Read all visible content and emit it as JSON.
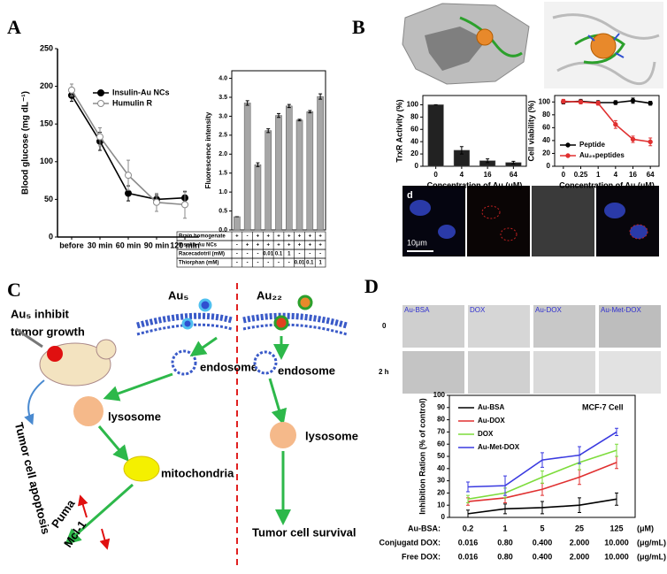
{
  "panel_labels": [
    "A",
    "B",
    "C",
    "D"
  ],
  "panel_b_images": {
    "microscopy_label": "d",
    "scale_bar": "10μm"
  },
  "panel_c_diagram": {
    "caption": [
      "Au₅ inhibit",
      "tumor growth"
    ],
    "au5": "Au₅",
    "au22": "Au₂₂",
    "endosome_left": "endosome",
    "lysosome_left": "lysosome",
    "mitochondria": "mitochondria",
    "puma": "Puma",
    "mcl1": "Mcl-1",
    "apoptosis": "Tumor cell apoptosis",
    "endosome_right": "endosome",
    "lysosome_right": "lysosome",
    "survival": "Tumor cell survival"
  },
  "panel_d_images": {
    "columns": [
      "Au-BSA",
      "DOX",
      "Au-DOX",
      "Au-Met-DOX"
    ],
    "rows": [
      "0",
      "2 h"
    ]
  },
  "chart_data": [
    {
      "type": "line",
      "ylabel": "Blood glucose (mg dL⁻¹)",
      "categories": [
        "before",
        "30 min",
        "60 min",
        "90 min",
        "120 min"
      ],
      "series": [
        {
          "name": "Insulin-Au NCs",
          "color": "#000000",
          "marker_fill": "#000000",
          "values": [
            188,
            127,
            58,
            50,
            52
          ],
          "errors": [
            8,
            12,
            10,
            6,
            8
          ]
        },
        {
          "name": "Humulin R",
          "color": "#8a8a8a",
          "marker_fill": "#ffffff",
          "values": [
            195,
            133,
            82,
            46,
            43
          ],
          "errors": [
            8,
            12,
            20,
            12,
            18
          ]
        }
      ],
      "ylim": [
        0,
        250
      ],
      "yticks": [
        0,
        50,
        100,
        150,
        200,
        250
      ],
      "frame": false,
      "legend": "upper center"
    },
    {
      "type": "bar",
      "ylabel": "Fluorescence intensity",
      "color": "#a6a6a6",
      "values": [
        0.35,
        3.35,
        1.72,
        2.62,
        3.02,
        3.27,
        2.9,
        3.12,
        3.52
      ],
      "errors": [
        0,
        0.06,
        0.05,
        0.05,
        0.05,
        0.04,
        0.02,
        0.03,
        0.07
      ],
      "ylim": [
        0,
        4.2
      ],
      "yticks": [
        {
          "value": 0,
          "label": "0.0"
        },
        0.5,
        {
          "value": 1,
          "label": "1.0"
        },
        1.5,
        {
          "value": 2,
          "label": "2.0"
        },
        2.5,
        {
          "value": 3,
          "label": "3.0"
        },
        3.5,
        {
          "value": 4,
          "label": "4.0"
        }
      ],
      "frame": true,
      "table": {
        "rows": [
          {
            "label": "Brain homogenate",
            "cells": [
              "+",
              "-",
              "+",
              "+",
              "+",
              "+",
              "+",
              "+",
              "+"
            ]
          },
          {
            "label": "Insulin-Au NCs",
            "cells": [
              "-",
              "+",
              "+",
              "+",
              "+",
              "+",
              "+",
              "+",
              "+"
            ]
          },
          {
            "label": "Racecadotril (mM)",
            "cells": [
              "-",
              "-",
              "-",
              "0.01",
              "0.1",
              "1",
              "-",
              "-",
              "-"
            ]
          },
          {
            "label": "Thiorphan (mM)",
            "cells": [
              "-",
              "-",
              "-",
              "-",
              "-",
              "-",
              "0.01",
              "0.1",
              "1"
            ]
          }
        ]
      }
    },
    {
      "type": "bar",
      "ylabel": "TrxR Activity (%)",
      "xlabel": "Concentration of Au (μM)",
      "color": "#222222",
      "categories": [
        "0",
        "4",
        "16",
        "64"
      ],
      "values": [
        100,
        26,
        9,
        6
      ],
      "errors": [
        0,
        6,
        3,
        2
      ],
      "ylim": [
        0,
        115
      ],
      "yticks": [
        0,
        20,
        40,
        60,
        80,
        100
      ],
      "frame": true
    },
    {
      "type": "line",
      "ylabel": "Cell viability (%)",
      "xlabel": "Concentration of Au (μM)",
      "categories": [
        "0",
        "0.25",
        "1",
        "4",
        "16",
        "64"
      ],
      "series": [
        {
          "name": "Peptide",
          "color": "#000000",
          "marker_fill": "#000000",
          "values": [
            100,
            101,
            99,
            99,
            102,
            98
          ],
          "errors": [
            3,
            3,
            3,
            3,
            4,
            3
          ]
        },
        {
          "name": "Au₂₅peptides",
          "color": "#e03030",
          "marker_fill": "#e03030",
          "values": [
            101,
            100,
            98,
            65,
            42,
            38
          ],
          "errors": [
            3,
            3,
            3,
            6,
            5,
            6
          ]
        }
      ],
      "ylim": [
        0,
        110
      ],
      "yticks": [
        0,
        20,
        40,
        60,
        80,
        100
      ],
      "frame": true,
      "legend": "lower left"
    },
    {
      "type": "line",
      "ylabel": "Inhibition Ration (% of control)",
      "annotation": "MCF-7 Cell",
      "series": [
        {
          "name": "Au-BSA",
          "color": "#000000",
          "values": [
            3,
            7,
            8,
            10,
            15
          ],
          "errors": [
            3,
            4,
            5,
            6,
            5
          ]
        },
        {
          "name": "Au-DOX",
          "color": "#e03030",
          "values": [
            13,
            16,
            23,
            33,
            45
          ],
          "errors": [
            3,
            4,
            5,
            6,
            5
          ]
        },
        {
          "name": "DOX",
          "color": "#7ddc3c",
          "values": [
            15,
            20,
            33,
            45,
            55
          ],
          "errors": [
            3,
            4,
            5,
            6,
            5
          ]
        },
        {
          "name": "Au-Met-DOX",
          "color": "#3a3ae0",
          "values": [
            25,
            26,
            47,
            51,
            70
          ],
          "errors": [
            4,
            8,
            6,
            7,
            3
          ]
        }
      ],
      "ylim": [
        0,
        100
      ],
      "yticks": [
        0,
        10,
        20,
        30,
        40,
        50,
        60,
        70,
        80,
        90,
        100
      ],
      "frame": true,
      "legend": "upper left",
      "x_table": {
        "rows": [
          {
            "label": "Au-BSA:",
            "values": [
              "0.2",
              "1",
              "5",
              "25",
              "125"
            ],
            "unit": "(μM)"
          },
          {
            "label": "Conjugatd DOX:",
            "values": [
              "0.016",
              "0.80",
              "0.400",
              "2.000",
              "10.000"
            ],
            "unit": "(μg/mL)"
          },
          {
            "label": "Free DOX:",
            "values": [
              "0.016",
              "0.80",
              "0.400",
              "2.000",
              "10.000"
            ],
            "unit": "(μg/mL)"
          }
        ]
      }
    }
  ]
}
